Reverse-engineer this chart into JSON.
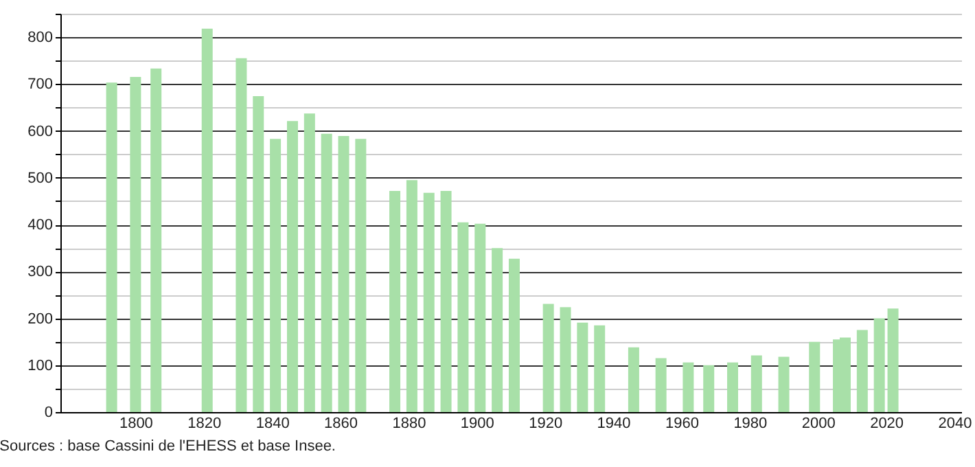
{
  "chart_data": {
    "type": "bar",
    "x": [
      1793,
      1800,
      1806,
      1821,
      1831,
      1836,
      1841,
      1846,
      1851,
      1856,
      1861,
      1866,
      1876,
      1881,
      1886,
      1891,
      1896,
      1901,
      1906,
      1911,
      1921,
      1926,
      1931,
      1936,
      1946,
      1954,
      1962,
      1968,
      1975,
      1982,
      1990,
      1999,
      2006,
      2008,
      2013,
      2018,
      2022
    ],
    "values": [
      703,
      715,
      733,
      818,
      755,
      674,
      583,
      621,
      637,
      594,
      589,
      583,
      472,
      495,
      468,
      472,
      405,
      402,
      350,
      327,
      231,
      224,
      191,
      185,
      138,
      115,
      106,
      100,
      106,
      121,
      118,
      150,
      155,
      159,
      175,
      200,
      221
    ],
    "color": "#a8e0a8",
    "xlim": [
      1780,
      2040
    ],
    "xticks": [
      1800,
      1820,
      1840,
      1860,
      1880,
      1900,
      1920,
      1940,
      1960,
      1980,
      2000,
      2020,
      2040
    ],
    "ylim": [
      0,
      850
    ],
    "yticks": [
      0,
      {
        "value": 50,
        "label": null
      },
      100,
      {
        "value": 150,
        "label": null
      },
      200,
      {
        "value": 250,
        "label": null
      },
      300,
      {
        "value": 350,
        "label": null
      },
      400,
      {
        "value": 450,
        "label": null
      },
      500,
      {
        "value": 550,
        "label": null
      },
      600,
      {
        "value": 650,
        "label": null
      },
      700,
      {
        "value": 750,
        "label": null
      },
      800,
      {
        "value": 850,
        "label": null
      }
    ],
    "grid": "y",
    "annotations": [
      "Sources : base Cassini de l'EHESS et base Insee."
    ]
  }
}
